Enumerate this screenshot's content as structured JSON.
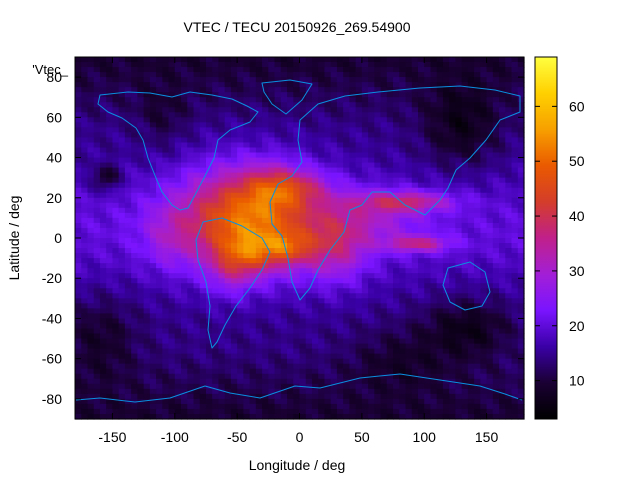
{
  "chart_data": {
    "type": "heatmap",
    "title": "VTEC / TECU 20150926_269.54900",
    "xlabel": "Longitude / deg",
    "ylabel": "Latitude / deg",
    "series_key": "'Vtec_",
    "xlim": [
      -180,
      180
    ],
    "ylim": [
      -90,
      90
    ],
    "x_ticks": [
      -150,
      -100,
      -50,
      0,
      50,
      100,
      150
    ],
    "y_ticks": [
      -80,
      -60,
      -40,
      -20,
      0,
      20,
      40,
      60,
      80
    ],
    "colorbar": {
      "min": 3,
      "max": 69,
      "ticks": [
        10,
        20,
        30,
        40,
        50,
        60
      ]
    },
    "colormap": [
      "#000000",
      "#1a0033",
      "#3a00a6",
      "#7a14ff",
      "#a31fd6",
      "#c0208a",
      "#d43d2a",
      "#ea5a00",
      "#f7a000",
      "#ffd000",
      "#ffff40"
    ],
    "coastline_color": "#0a8fe0",
    "features": [
      {
        "lon": -40,
        "lat": 10,
        "slon": 55,
        "slat": 25,
        "amp": 32
      },
      {
        "lon": -20,
        "lat": 25,
        "slon": 22,
        "slat": 10,
        "amp": 12
      },
      {
        "lon": -10,
        "lat": -5,
        "slon": 22,
        "slat": 8,
        "amp": 14
      },
      {
        "lon": -40,
        "lat": -8,
        "slon": 20,
        "slat": 10,
        "amp": 10
      },
      {
        "lon": 5,
        "lat": 25,
        "slon": 20,
        "slat": 8,
        "amp": 8
      },
      {
        "lon": 30,
        "lat": -5,
        "slon": 25,
        "slat": 18,
        "amp": 12
      },
      {
        "lon": -55,
        "lat": -15,
        "slon": 18,
        "slat": 14,
        "amp": 8
      },
      {
        "lon": 85,
        "lat": 18,
        "slon": 38,
        "slat": 5,
        "amp": 16
      },
      {
        "lon": 95,
        "lat": -3,
        "slon": 25,
        "slat": 4,
        "amp": 16
      },
      {
        "lon": 60,
        "lat": 10,
        "slon": 40,
        "slat": 14,
        "amp": 8
      },
      {
        "lon": -105,
        "lat": 0,
        "slon": 20,
        "slat": 15,
        "amp": 5
      },
      {
        "lon": -155,
        "lat": 30,
        "slon": 10,
        "slat": 6,
        "amp": -10
      },
      {
        "lon": 130,
        "lat": 55,
        "slon": 30,
        "slat": 20,
        "amp": -8
      },
      {
        "lon": 135,
        "lat": -45,
        "slon": 35,
        "slat": 15,
        "amp": -8
      },
      {
        "lon": -160,
        "lat": -50,
        "slon": 30,
        "slat": 20,
        "amp": -6
      },
      {
        "lon": 80,
        "lat": -60,
        "slon": 40,
        "slat": 15,
        "amp": -5
      },
      {
        "lon": -110,
        "lat": 60,
        "slon": 20,
        "slat": 15,
        "amp": -4
      }
    ]
  }
}
